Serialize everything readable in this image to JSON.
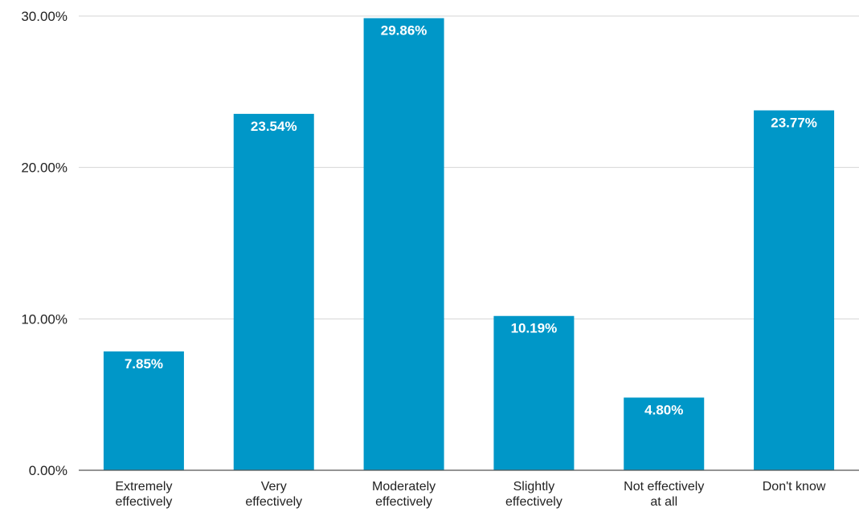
{
  "chart_data": {
    "type": "bar",
    "title": "",
    "xlabel": "",
    "ylabel": "",
    "categories": [
      [
        "Extremely",
        "effectively"
      ],
      [
        "Very",
        "effectively"
      ],
      [
        "Moderately",
        "effectively"
      ],
      [
        "Slightly",
        "effectively"
      ],
      [
        "Not effectively",
        "at all"
      ],
      [
        "Don't know"
      ]
    ],
    "values": [
      7.85,
      23.54,
      29.86,
      10.19,
      4.8,
      23.77
    ],
    "data_labels": [
      "7.85%",
      "23.54%",
      "29.86%",
      "10.19%",
      "4.80%",
      "23.77%"
    ],
    "ylim": [
      0,
      30
    ],
    "yticks": [
      0,
      10,
      20,
      30
    ],
    "ytick_labels": [
      "0.00%",
      "10.00%",
      "20.00%",
      "30.00%"
    ],
    "grid": true,
    "legend": "none",
    "bar_color": "#0097c8"
  }
}
